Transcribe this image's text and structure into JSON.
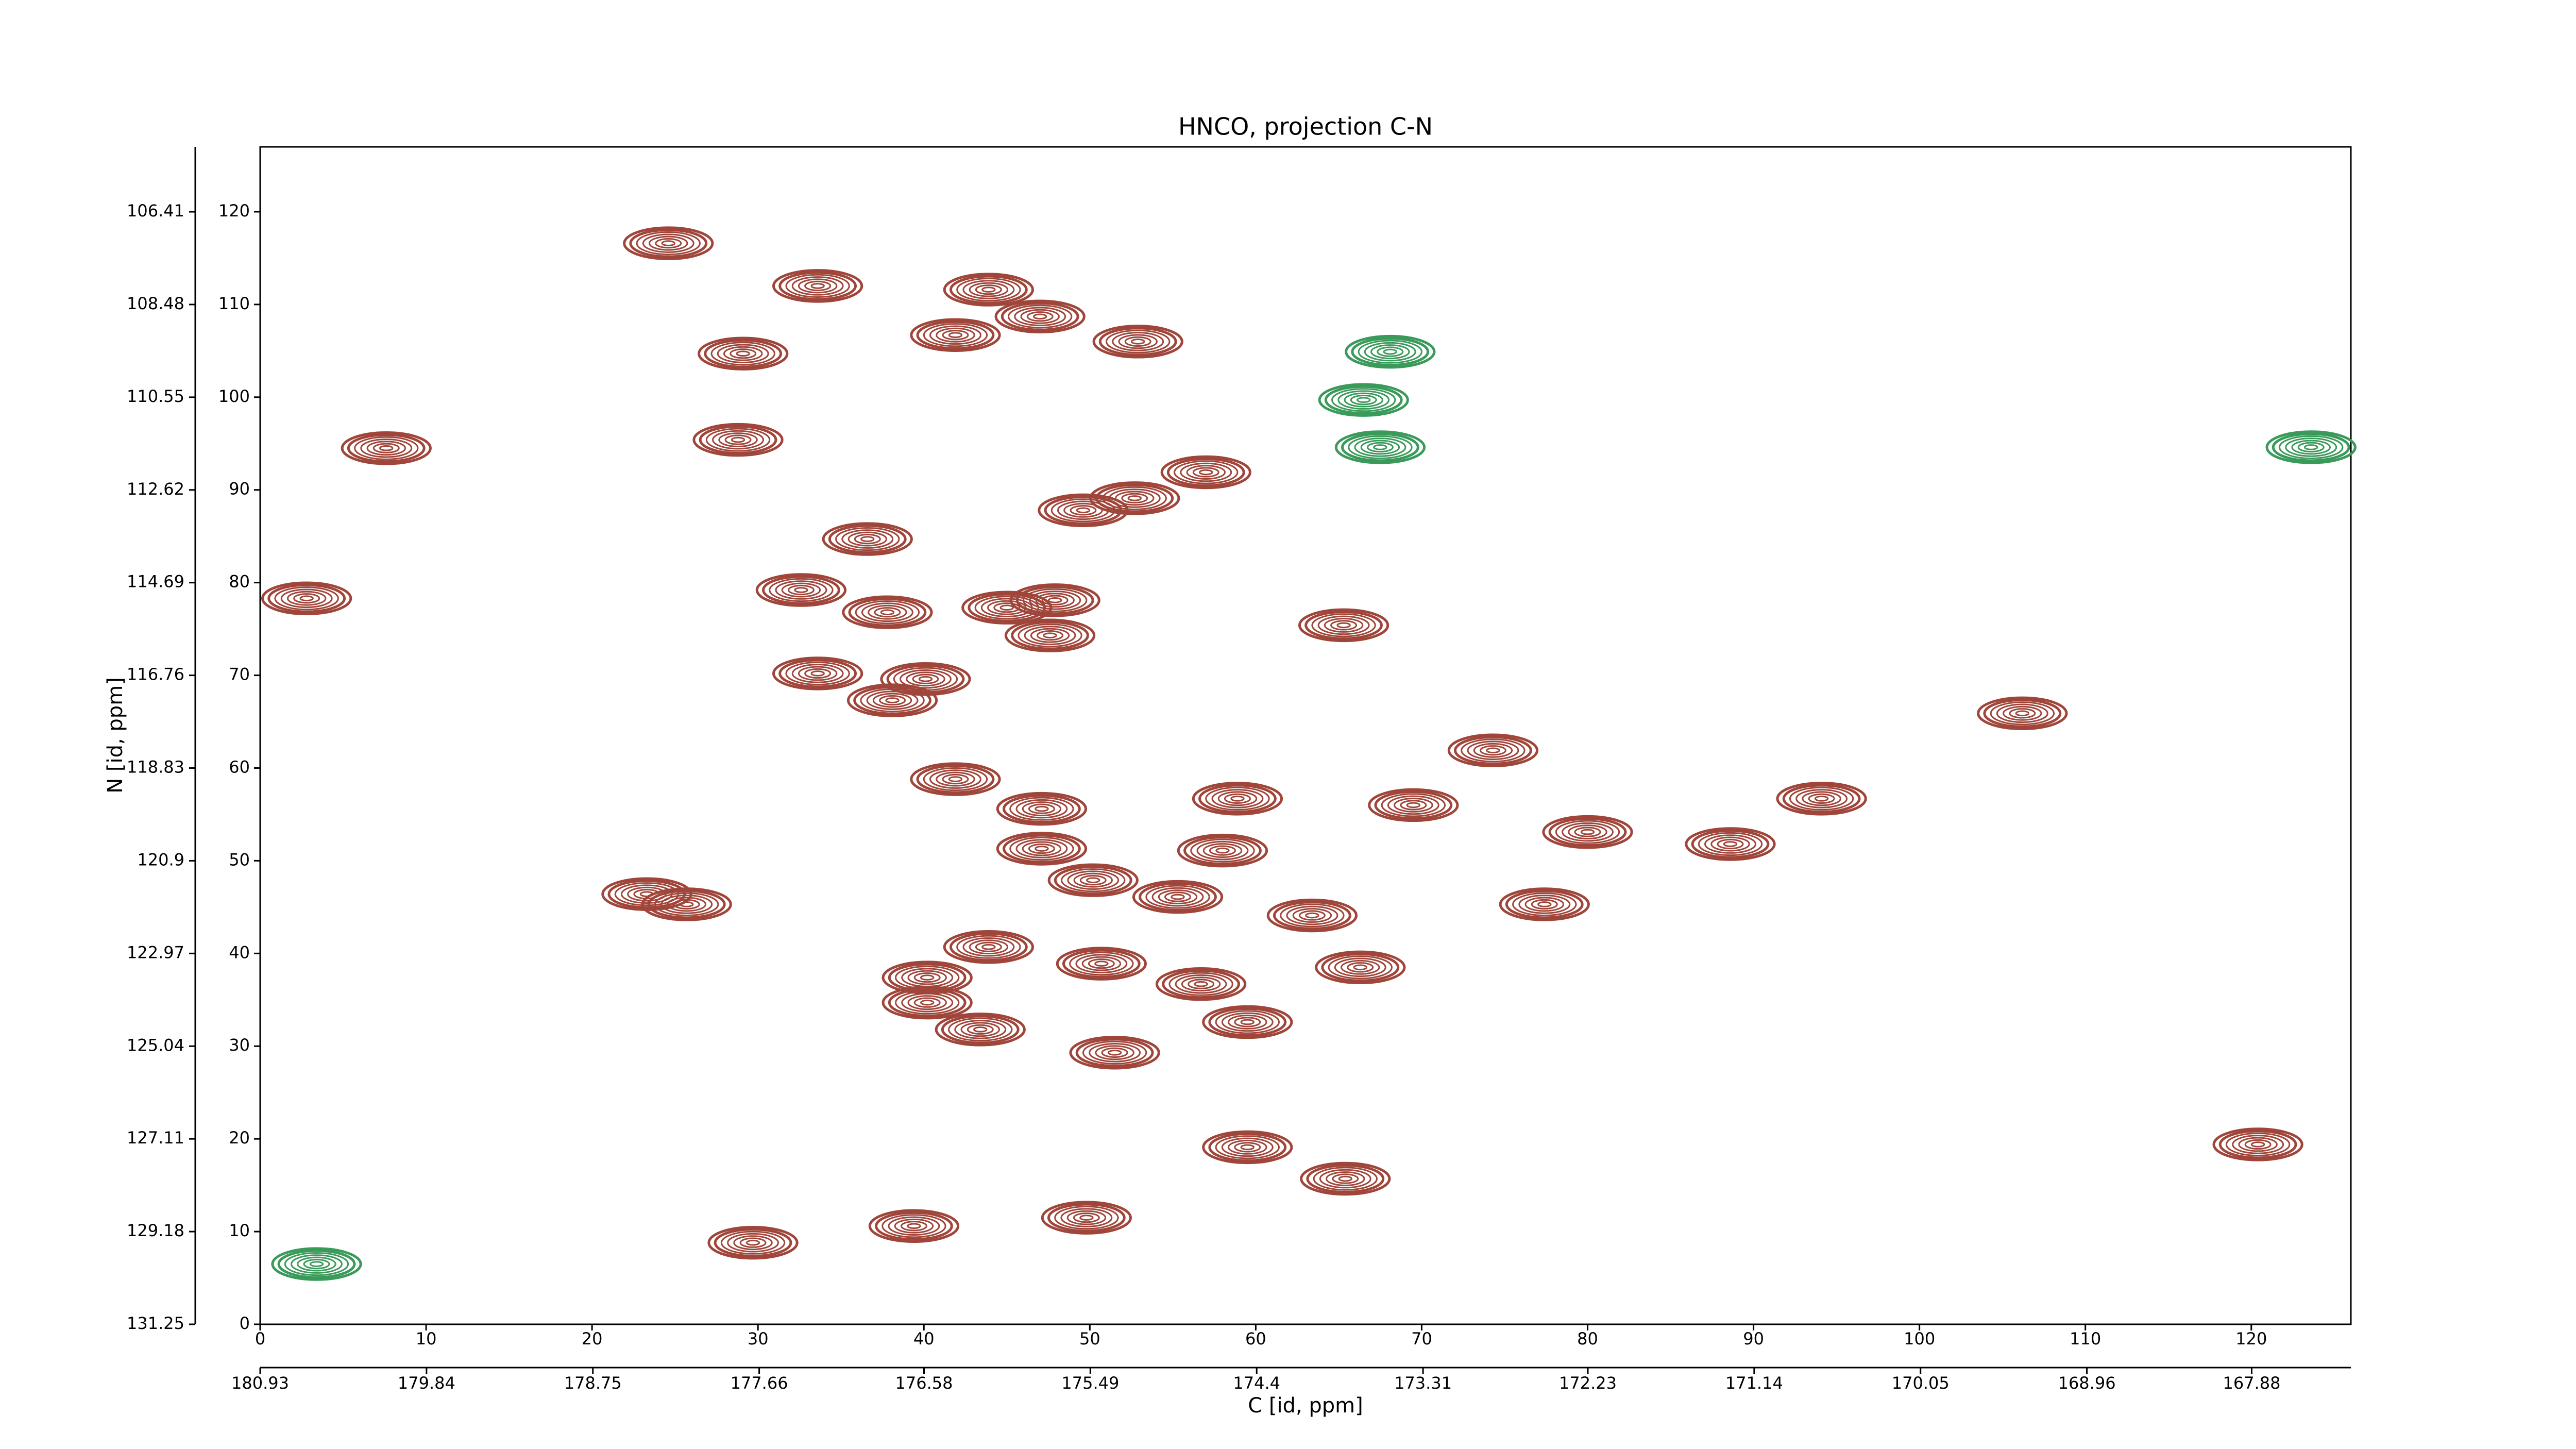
{
  "chart_data": {
    "type": "contour",
    "title": "HNCO, projection C-N",
    "xlabel": "C [id, ppm]",
    "ylabel": "N [id, ppm]",
    "xlim": [
      0,
      126
    ],
    "xticks": [
      0,
      10,
      20,
      30,
      40,
      50,
      60,
      70,
      80,
      90,
      100,
      110,
      120
    ],
    "ylim": [
      0,
      127
    ],
    "yticks": [
      0,
      10,
      20,
      30,
      40,
      50,
      60,
      70,
      80,
      90,
      100,
      110,
      120
    ],
    "x2lim": [
      180.93,
      167.23
    ],
    "x2ticks": [
      180.93,
      179.84,
      178.75,
      177.66,
      176.58,
      175.49,
      174.4,
      173.31,
      172.23,
      171.14,
      170.05,
      168.96,
      167.88
    ],
    "y2lim": [
      131.25,
      104.96
    ],
    "y2ticks": [
      131.25,
      129.18,
      127.11,
      125.04,
      122.97,
      120.9,
      118.83,
      116.76,
      114.69,
      112.62,
      110.55,
      108.48,
      106.41
    ],
    "series": [
      {
        "color": "#a0453a",
        "x": [
          24.6,
          33.6,
          43.9,
          47,
          41.9,
          52.9,
          29.1,
          28.8,
          7.6,
          36.6,
          32.6,
          37.8,
          45,
          47.9,
          47.6,
          65.3,
          33.6,
          38.1,
          40.1,
          52.7,
          49.6,
          57,
          41.9,
          47.1,
          47.1,
          50.2,
          55.3,
          58,
          58.9,
          69.5,
          74.3,
          80,
          77.4,
          63.4,
          66.3,
          50.7,
          56.7,
          59.5,
          43.9,
          40.2,
          40.2,
          43.4,
          51.5,
          23.3,
          25.7,
          88.6,
          94.1,
          106.2,
          59.5,
          65.4,
          49.8,
          39.4,
          29.7,
          2.8,
          120.4
        ],
        "y": [
          116.6,
          112,
          111.6,
          108.7,
          106.7,
          106,
          104.7,
          95.4,
          94.5,
          84.7,
          79.2,
          76.8,
          77.3,
          78.1,
          74.3,
          75.4,
          70.2,
          67.3,
          69.6,
          89.1,
          87.8,
          91.9,
          58.8,
          55.6,
          51.3,
          47.9,
          46.1,
          51.1,
          56.7,
          56,
          61.9,
          53.1,
          45.3,
          44.1,
          38.5,
          38.9,
          36.7,
          32.6,
          40.7,
          37.4,
          34.7,
          31.8,
          29.3,
          46.4,
          45.3,
          51.8,
          56.7,
          65.9,
          19.1,
          15.7,
          11.5,
          10.6,
          8.8,
          78.3,
          19.4
        ]
      },
      {
        "color": "#3a9a5a",
        "x": [
          68.1,
          66.5,
          67.5,
          123.6,
          3.4
        ],
        "y": [
          104.9,
          99.7,
          94.6,
          94.6,
          6.5
        ]
      }
    ]
  }
}
